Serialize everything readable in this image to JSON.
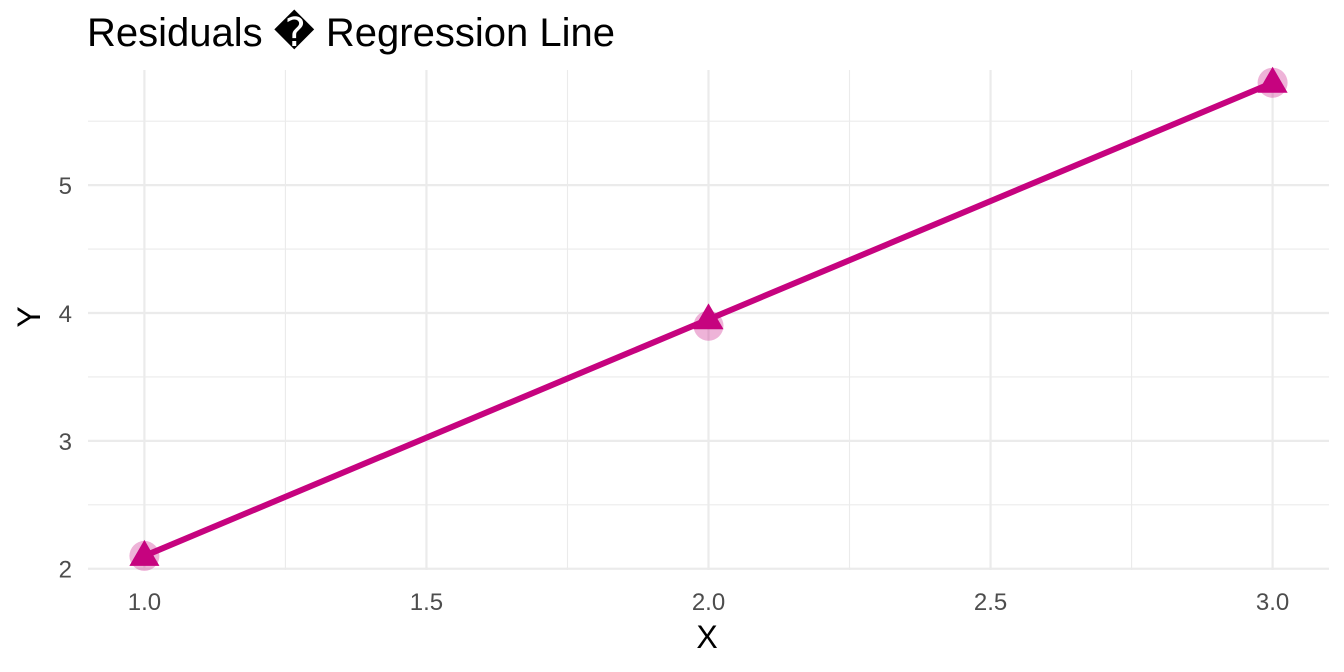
{
  "chart_data": {
    "type": "line",
    "title": "Residuals � Regression Line",
    "xlabel": "X",
    "ylabel": "Y",
    "xlim": [
      0.9,
      3.1
    ],
    "ylim": [
      1.99,
      5.9
    ],
    "x_ticks": [
      "1.0",
      "1.5",
      "2.0",
      "2.5",
      "3.0"
    ],
    "y_ticks": [
      "2",
      "3",
      "4",
      "5"
    ],
    "x_tick_values": [
      1.0,
      1.5,
      2.0,
      2.5,
      3.0
    ],
    "y_tick_values": [
      2,
      3,
      4,
      5
    ],
    "x_minor_values": [
      1.25,
      1.75,
      2.25,
      2.75
    ],
    "y_minor_values": [
      2.5,
      3.5,
      4.5,
      5.5
    ],
    "grid": true,
    "legend": "none",
    "color": "#C6037F",
    "series": [
      {
        "points": [
          {
            "x": 1.0,
            "y": 2.1
          },
          {
            "x": 2.0,
            "y": 3.9
          },
          {
            "x": 3.0,
            "y": 5.8
          }
        ],
        "fitted": [
          {
            "x": 1.0,
            "y": 2.1
          },
          {
            "x": 2.0,
            "y": 3.95
          },
          {
            "x": 3.0,
            "y": 5.8
          }
        ]
      }
    ]
  }
}
